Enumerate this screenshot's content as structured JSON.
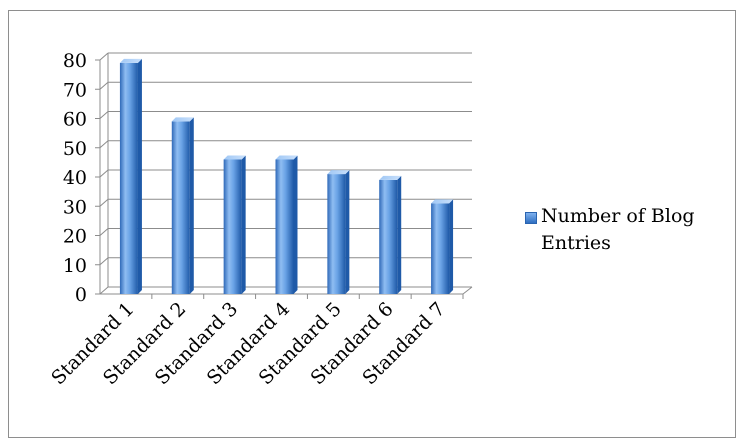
{
  "chart_data": {
    "type": "bar",
    "style": "3d-column",
    "categories": [
      "Standard 1",
      "Standard 2",
      "Standard 3",
      "Standard 4",
      "Standard 5",
      "Standard 6",
      "Standard 7"
    ],
    "series": [
      {
        "name": "Number of Blog Entries",
        "values": [
          79,
          59,
          46,
          46,
          41,
          39,
          31
        ],
        "color": "#4a86d6"
      }
    ],
    "title": "",
    "xlabel": "",
    "ylabel": "",
    "ylim": [
      0,
      80
    ],
    "yticks": [
      0,
      10,
      20,
      30,
      40,
      50,
      60,
      70,
      80
    ],
    "grid": true,
    "legend_position": "right"
  },
  "colors": {
    "bar_light": "#8fbdf2",
    "bar_mid": "#4f8ad8",
    "bar_dark": "#1f5aa8",
    "grid": "#8c8c8c",
    "frame": "#8e8e8e"
  }
}
